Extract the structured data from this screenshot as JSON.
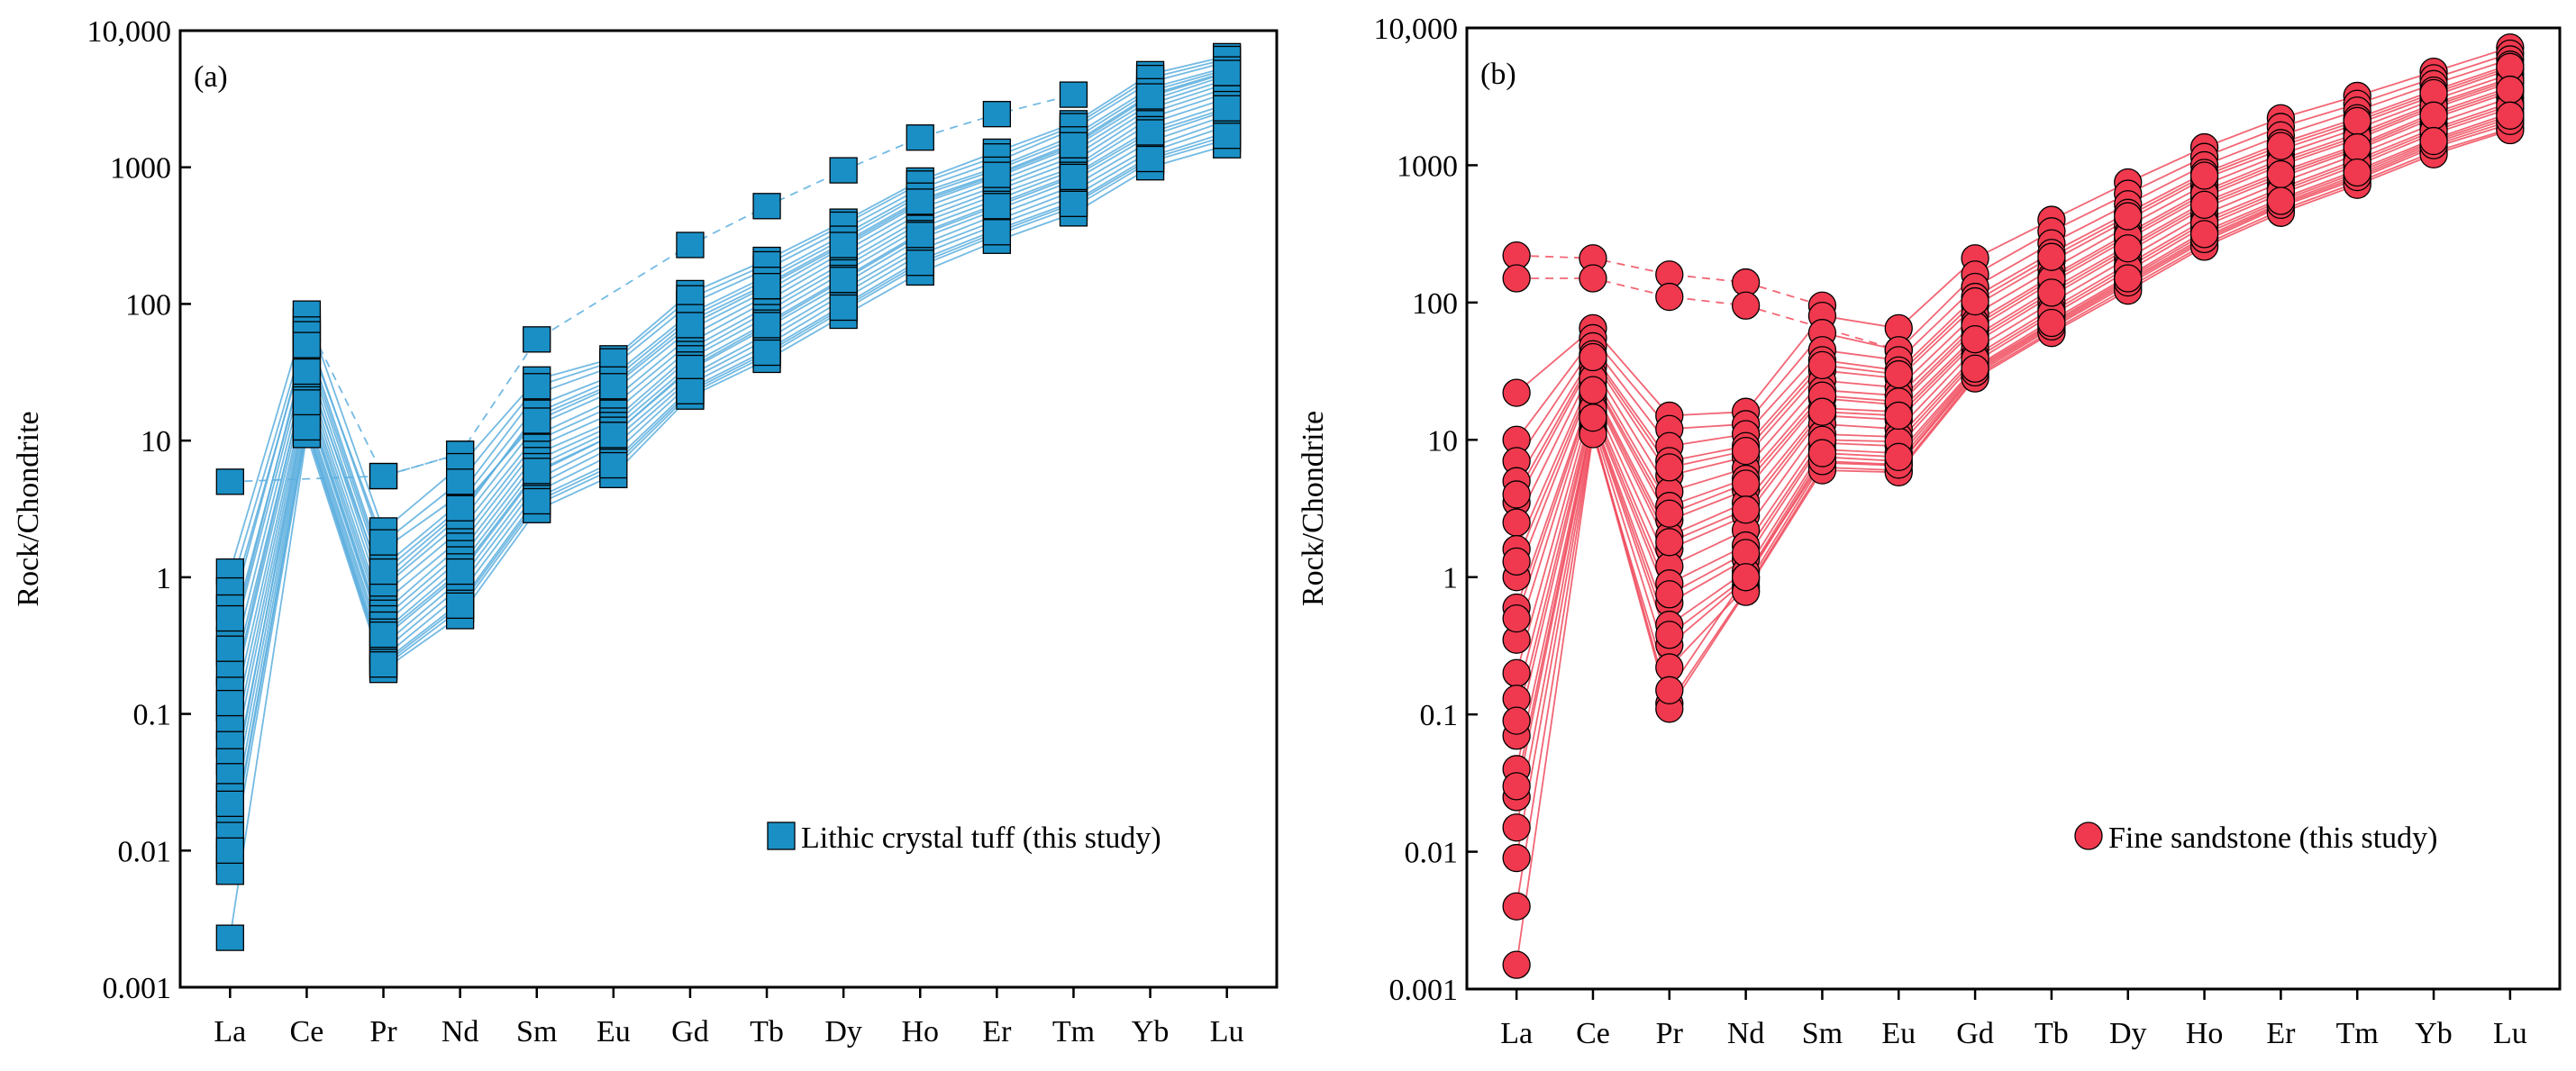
{
  "figure": {
    "colors": {
      "tuff_fill": "#1a8fc6",
      "tuff_line": "#5aaede",
      "sandstone_fill": "#f0394e",
      "sandstone_line": "#f04a5c",
      "outline": "#000000"
    }
  },
  "chart_data": [
    {
      "type": "line",
      "panel_label": "(a)",
      "ylabel": "Rock/Chondrite",
      "xlabel": "",
      "yscale": "log",
      "ylim": [
        0.001,
        10000
      ],
      "grid": false,
      "categories": [
        "La",
        "Ce",
        "Pr",
        "Nd",
        "Sm",
        "Eu",
        "Gd",
        "Tb",
        "Dy",
        "Ho",
        "Er",
        "Tm",
        "Yb",
        "Lu"
      ],
      "ytick_values": [
        0.001,
        0.01,
        0.1,
        1,
        10,
        100,
        1000,
        10000
      ],
      "ytick_labels": [
        "0.001",
        "0.01",
        "0.1",
        "1",
        "10",
        "100",
        "1000",
        "10,000"
      ],
      "legend": {
        "label": "Lithic crystal tuff (this study)",
        "marker": "square",
        "placement": "lower-right"
      },
      "series_style": {
        "marker": "square",
        "line": "solid"
      },
      "series": [
        {
          "name": "s1",
          "dashed": true,
          "values": [
            5.0,
            null,
            5.5,
            8.0,
            55,
            null,
            270,
            520,
            950,
            1650,
            2450,
            3400,
            null,
            null
          ]
        },
        {
          "name": "s2",
          "dashed": true,
          "values": [
            null,
            75,
            5.5,
            8.0,
            null,
            null,
            null,
            null,
            null,
            null,
            null,
            null,
            null,
            null
          ]
        },
        {
          "name": "s3",
          "values": [
            1.1,
            85,
            2.2,
            6.5,
            28,
            40,
            120,
            210,
            400,
            800,
            1300,
            2100,
            4800,
            6500
          ]
        },
        {
          "name": "s4",
          "values": [
            0.8,
            65,
            1.6,
            4.0,
            22,
            35,
            100,
            180,
            350,
            700,
            1100,
            1900,
            4200,
            5900
          ]
        },
        {
          "name": "s5",
          "values": [
            0.6,
            55,
            1.2,
            3.5,
            18,
            30,
            85,
            160,
            320,
            650,
            1000,
            1700,
            3800,
            5400
          ]
        },
        {
          "name": "s6",
          "values": [
            0.35,
            45,
            1.0,
            3.0,
            15,
            26,
            75,
            140,
            280,
            580,
            900,
            1500,
            3400,
            5000
          ]
        },
        {
          "name": "s7",
          "values": [
            0.28,
            40,
            0.85,
            2.5,
            13,
            23,
            65,
            125,
            260,
            540,
            850,
            1400,
            3100,
            4700
          ]
        },
        {
          "name": "s8",
          "values": [
            0.2,
            35,
            0.75,
            2.2,
            11,
            20,
            58,
            115,
            240,
            500,
            790,
            1300,
            2900,
            4400
          ]
        },
        {
          "name": "s9",
          "values": [
            0.15,
            30,
            0.65,
            1.9,
            10,
            18,
            52,
            105,
            220,
            460,
            730,
            1200,
            2700,
            4100
          ]
        },
        {
          "name": "s10",
          "values": [
            0.11,
            27,
            0.55,
            1.7,
            9,
            16,
            47,
            95,
            200,
            420,
            680,
            1100,
            2500,
            3800
          ]
        },
        {
          "name": "s11",
          "values": [
            0.08,
            24,
            0.5,
            1.5,
            8,
            14,
            43,
            88,
            185,
            390,
            630,
            1000,
            2300,
            3500
          ]
        },
        {
          "name": "s12",
          "values": [
            0.06,
            22,
            0.45,
            1.35,
            7.2,
            13,
            40,
            80,
            170,
            360,
            580,
            950,
            2100,
            3200
          ]
        },
        {
          "name": "s13",
          "values": [
            0.045,
            20,
            0.4,
            1.2,
            6.5,
            12,
            36,
            73,
            155,
            330,
            540,
            880,
            1900,
            2900
          ]
        },
        {
          "name": "s14",
          "values": [
            0.035,
            18,
            0.36,
            1.05,
            5.8,
            11,
            33,
            67,
            140,
            300,
            490,
            800,
            1700,
            2600
          ]
        },
        {
          "name": "s15",
          "values": [
            0.025,
            16,
            0.32,
            0.95,
            5.2,
            10,
            30,
            60,
            128,
            270,
            450,
            730,
            1550,
            2400
          ]
        },
        {
          "name": "s16",
          "values": [
            0.018,
            15,
            0.29,
            0.85,
            4.7,
            9,
            28,
            55,
            118,
            250,
            410,
            670,
            1400,
            2200
          ]
        },
        {
          "name": "s17",
          "values": [
            0.013,
            14,
            0.26,
            0.75,
            4.2,
            8,
            26,
            50,
            108,
            230,
            380,
            610,
            1300,
            2000
          ]
        },
        {
          "name": "s18",
          "values": [
            0.009,
            13,
            0.24,
            0.65,
            3.8,
            7,
            24,
            46,
            98,
            210,
            350,
            560,
            1200,
            1800
          ]
        },
        {
          "name": "s19",
          "values": [
            0.007,
            12,
            0.22,
            0.58,
            3.4,
            6.2,
            22,
            42,
            90,
            190,
            320,
            510,
            1100,
            1600
          ]
        },
        {
          "name": "s20",
          "values": [
            0.0023,
            11,
            0.21,
            0.52,
            3.1,
            5.6,
            21,
            39,
            82,
            170,
            290,
            460,
            1000,
            1450
          ]
        },
        {
          "name": "s21",
          "values": [
            0.5,
            60,
            1.8,
            5.0,
            25,
            38,
            110,
            195,
            380,
            760,
            1200,
            2000,
            4500,
            6200
          ]
        },
        {
          "name": "s22",
          "values": [
            0.12,
            32,
            0.9,
            2.8,
            16,
            28,
            80,
            150,
            300,
            620,
            960,
            1600,
            3600,
            5200
          ]
        },
        {
          "name": "s23",
          "values": [
            0.022,
            19,
            0.38,
            1.1,
            6.0,
            11,
            34,
            70,
            150,
            320,
            520,
            850,
            1800,
            2700
          ]
        },
        {
          "name": "s24",
          "values": [
            0.3,
            50,
            1.1,
            3.2,
            14,
            25,
            70,
            135,
            270,
            560,
            880,
            1450,
            3300,
            4900
          ]
        },
        {
          "name": "s25",
          "values": [
            0.01,
            12.5,
            0.23,
            0.62,
            3.6,
            6.6,
            23,
            44,
            94,
            200,
            335,
            540,
            1150,
            1700
          ]
        }
      ]
    },
    {
      "type": "line",
      "panel_label": "(b)",
      "ylabel": "Rock/Chondrite",
      "xlabel": "",
      "yscale": "log",
      "ylim": [
        0.001,
        10000
      ],
      "grid": false,
      "categories": [
        "La",
        "Ce",
        "Pr",
        "Nd",
        "Sm",
        "Eu",
        "Gd",
        "Tb",
        "Dy",
        "Ho",
        "Er",
        "Tm",
        "Yb",
        "Lu"
      ],
      "ytick_values": [
        0.001,
        0.01,
        0.1,
        1,
        10,
        100,
        1000,
        10000
      ],
      "ytick_labels": [
        "0.001",
        "0.01",
        "0.1",
        "1",
        "10",
        "100",
        "1000",
        "10,000"
      ],
      "legend": {
        "label": "Fine sandstone (this study)",
        "marker": "circle",
        "placement": "lower-right"
      },
      "series_style": {
        "marker": "circle",
        "line": "solid"
      },
      "series": [
        {
          "name": "d1",
          "dashed": true,
          "values": [
            220,
            210,
            160,
            140,
            95,
            null,
            null,
            null,
            null,
            null,
            null,
            null,
            null,
            null
          ]
        },
        {
          "name": "d2",
          "dashed": true,
          "values": [
            150,
            150,
            110,
            95,
            null,
            45,
            null,
            null,
            null,
            null,
            null,
            null,
            null,
            null
          ]
        },
        {
          "name": "t1",
          "values": [
            22,
            65,
            15,
            16,
            80,
            65,
            210,
            400,
            750,
            1350,
            2200,
            3200,
            4800,
            7200
          ]
        },
        {
          "name": "t2",
          "values": [
            10,
            55,
            12,
            13,
            60,
            45,
            160,
            330,
            620,
            1150,
            1900,
            2800,
            4300,
            6500
          ]
        },
        {
          "name": "t3",
          "values": [
            7,
            48,
            9,
            11,
            45,
            38,
            130,
            270,
            520,
            1000,
            1650,
            2500,
            3900,
            5900
          ]
        },
        {
          "name": "t4",
          "values": [
            5,
            42,
            7,
            9,
            38,
            32,
            110,
            230,
            450,
            880,
            1450,
            2200,
            3500,
            5400
          ]
        },
        {
          "name": "t5",
          "values": [
            3.5,
            38,
            5.5,
            7.5,
            32,
            28,
            95,
            200,
            400,
            800,
            1300,
            2000,
            3200,
            5000
          ]
        },
        {
          "name": "t6",
          "values": [
            2.5,
            34,
            4.2,
            6.2,
            27,
            24,
            82,
            175,
            360,
            720,
            1200,
            1850,
            3000,
            4600
          ]
        },
        {
          "name": "t7",
          "values": [
            1.6,
            30,
            3.3,
            5.2,
            23,
            21,
            72,
            155,
            320,
            650,
            1100,
            1700,
            2800,
            4300
          ]
        },
        {
          "name": "t8",
          "values": [
            1.0,
            27,
            2.6,
            4.3,
            20,
            18,
            64,
            140,
            290,
            590,
            1000,
            1550,
            2600,
            4000
          ]
        },
        {
          "name": "t9",
          "values": [
            0.6,
            24,
            2.0,
            3.5,
            17,
            16,
            57,
            125,
            260,
            540,
            900,
            1400,
            2400,
            3700
          ]
        },
        {
          "name": "t10",
          "values": [
            0.35,
            22,
            1.6,
            2.8,
            15,
            14,
            51,
            112,
            235,
            490,
            820,
            1300,
            2200,
            3400
          ]
        },
        {
          "name": "t11",
          "values": [
            0.2,
            20,
            1.2,
            2.2,
            13,
            12,
            46,
            100,
            210,
            440,
            750,
            1200,
            2000,
            3100
          ]
        },
        {
          "name": "t12",
          "values": [
            0.13,
            18,
            0.9,
            1.7,
            11,
            10.5,
            41,
            90,
            190,
            400,
            680,
            1100,
            1850,
            2850
          ]
        },
        {
          "name": "t13",
          "values": [
            0.07,
            16,
            0.65,
            1.35,
            9.5,
            9,
            37,
            81,
            170,
            360,
            620,
            1000,
            1700,
            2600
          ]
        },
        {
          "name": "t14",
          "values": [
            0.04,
            15,
            0.45,
            1.1,
            8.5,
            8,
            34,
            74,
            155,
            330,
            570,
            920,
            1550,
            2400
          ]
        },
        {
          "name": "t15",
          "values": [
            0.025,
            14,
            0.32,
            0.95,
            7.5,
            7,
            32,
            69,
            145,
            300,
            530,
            850,
            1450,
            2200
          ]
        },
        {
          "name": "t16",
          "values": [
            0.015,
            13,
            0.22,
            0.85,
            6.8,
            6.5,
            30,
            65,
            135,
            280,
            500,
            790,
            1350,
            2000
          ]
        },
        {
          "name": "t17",
          "values": [
            0.009,
            12,
            0.12,
            0.8,
            6.3,
            6,
            29,
            62,
            128,
            265,
            470,
            750,
            1250,
            1850
          ]
        },
        {
          "name": "t18",
          "values": [
            0.004,
            11.5,
            0.11,
            0.78,
            6.0,
            5.8,
            28,
            60,
            122,
            255,
            450,
            720,
            1200,
            1800
          ]
        },
        {
          "name": "t19",
          "values": [
            0.0015,
            11,
            0.15,
            1.0,
            7.0,
            6.6,
            31,
            67,
            140,
            290,
            515,
            820,
            1400,
            2100
          ]
        },
        {
          "name": "t20",
          "values": [
            1.3,
            28,
            2.9,
            4.8,
            21,
            19,
            68,
            148,
            305,
            620,
            1050,
            1620,
            2700,
            4150
          ]
        },
        {
          "name": "t21",
          "values": [
            0.09,
            17,
            0.75,
            1.5,
            10,
            9.7,
            39,
            85,
            180,
            380,
            650,
            1050,
            1780,
            2720
          ]
        },
        {
          "name": "t22",
          "values": [
            4,
            40,
            6.3,
            8.3,
            35,
            30,
            102,
            215,
            425,
            840,
            1380,
            2100,
            3350,
            5200
          ]
        },
        {
          "name": "t23",
          "values": [
            0.5,
            23,
            1.8,
            3.1,
            16,
            15,
            54,
            118,
            248,
            515,
            860,
            1350,
            2300,
            3550
          ]
        },
        {
          "name": "t24",
          "values": [
            0.03,
            14.5,
            0.38,
            1.0,
            8,
            7.5,
            33,
            71,
            150,
            315,
            550,
            885,
            1500,
            2300
          ]
        }
      ]
    }
  ]
}
